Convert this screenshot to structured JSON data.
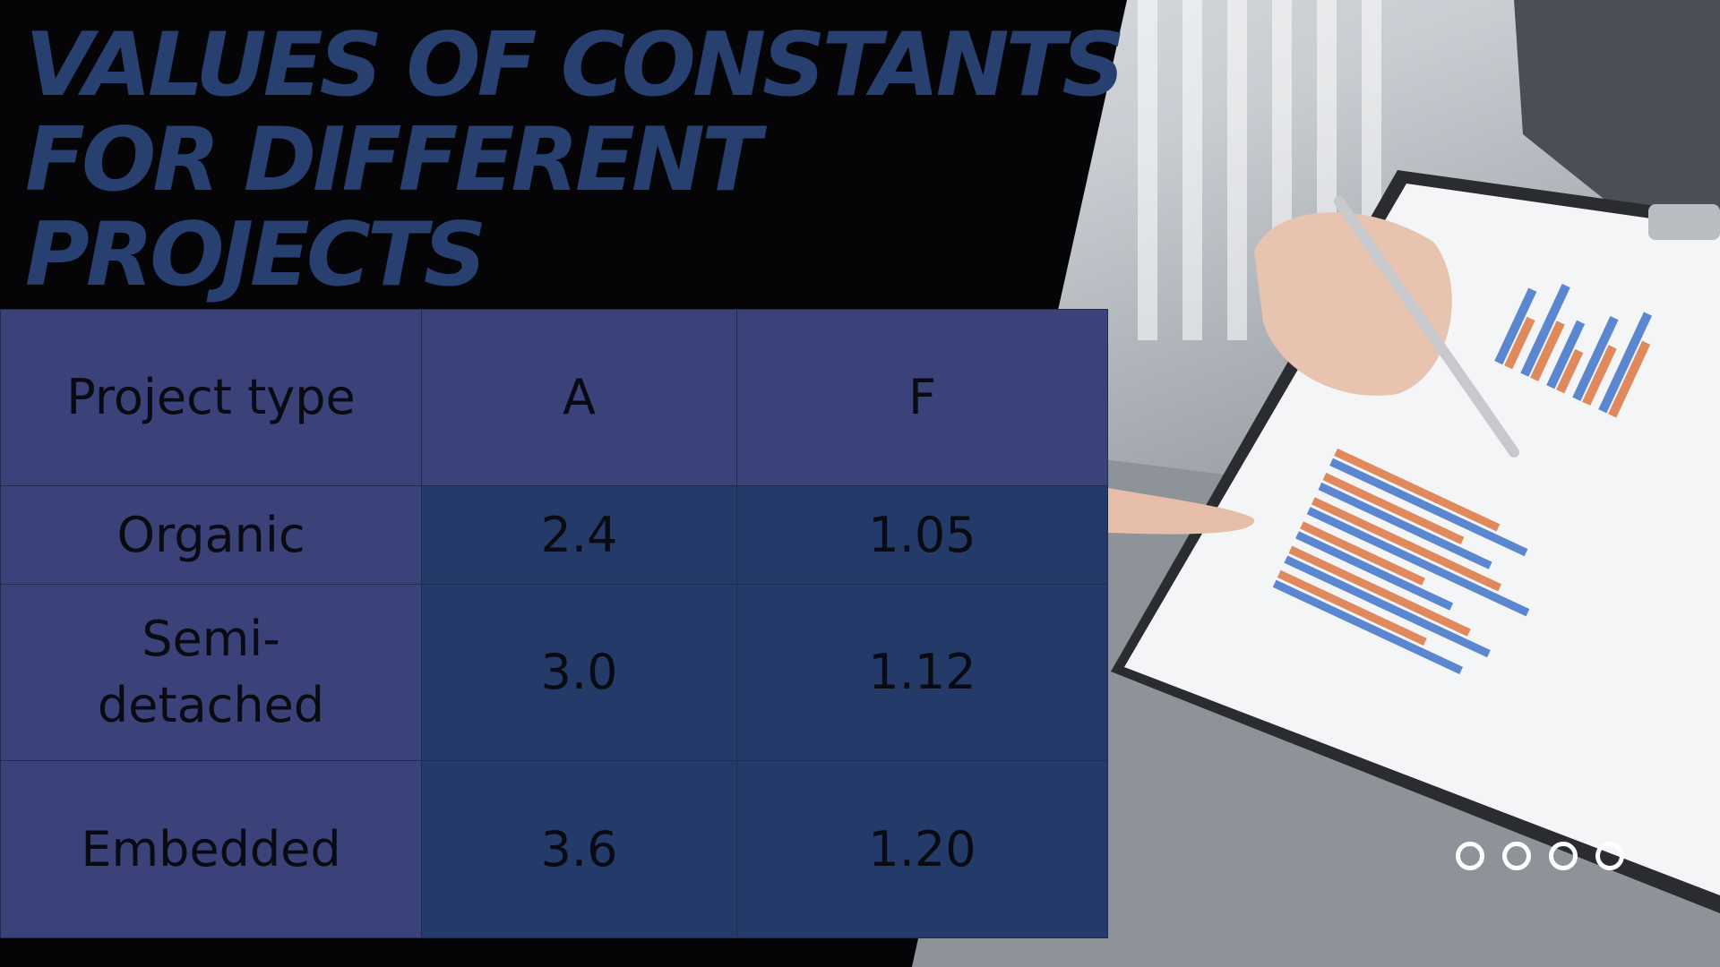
{
  "slide": {
    "title": "VALUES OF CONSTANTS FOR DIFFERENT PROJECTS"
  },
  "table": {
    "headers": [
      "Project type",
      "A",
      "F"
    ],
    "rows": [
      {
        "type": "Organic",
        "a": "2.4",
        "f": "1.05"
      },
      {
        "type": "Semi-detached",
        "a": "3.0",
        "f": "1.12"
      },
      {
        "type": "Embedded",
        "a": "3.6",
        "f": "1.20"
      }
    ]
  },
  "decor": {
    "photo": "business-report-chart-photo",
    "dots": 4,
    "colors": {
      "title": "#28406f",
      "header_cell": "#3b4279",
      "type_cell": "#3b4279",
      "value_cell": "#243b69",
      "bar_blue": "#5b86d0",
      "bar_orange": "#e0895c"
    }
  }
}
